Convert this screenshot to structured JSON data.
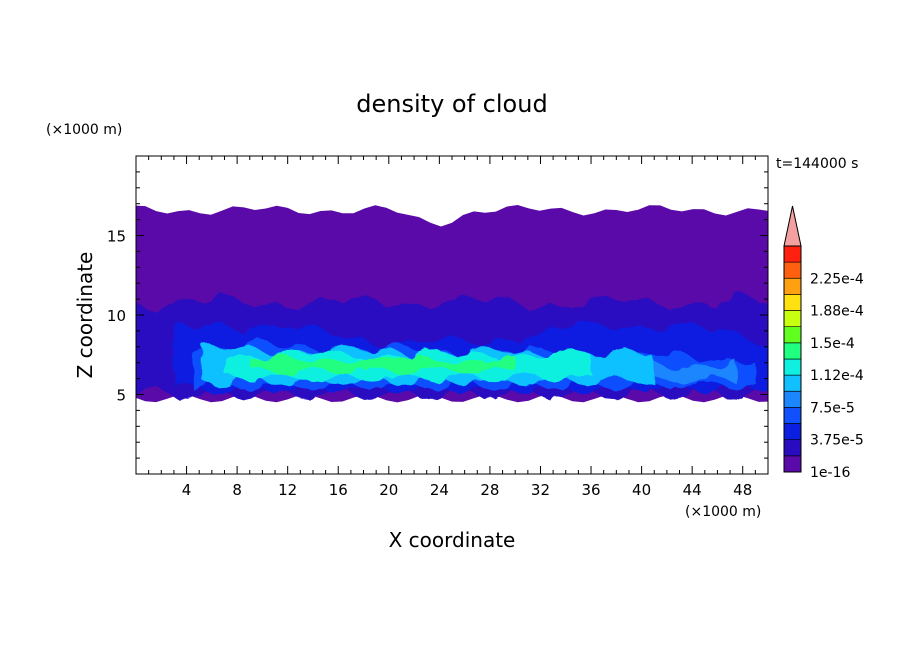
{
  "chart_data": {
    "type": "heatmap",
    "title": "density of cloud",
    "xlabel": "X coordinate",
    "ylabel": "Z coordinate",
    "x_unit": "(×1000 m)",
    "y_unit": "(×1000 m)",
    "time_label": "t=144000 s",
    "xlim": [
      0,
      50
    ],
    "ylim": [
      0,
      20
    ],
    "x_ticks": [
      4,
      8,
      12,
      16,
      20,
      24,
      28,
      32,
      36,
      40,
      44,
      48
    ],
    "y_ticks": [
      5,
      10,
      15
    ],
    "colorbar": {
      "labels": [
        "1e-16",
        "3.75e-5",
        "7.5e-5",
        "1.12e-4",
        "1.5e-4",
        "1.88e-4",
        "2.25e-4"
      ],
      "levels": [
        1e-16,
        1.88e-05,
        3.75e-05,
        5.63e-05,
        7.5e-05,
        9.38e-05,
        0.000112,
        0.000131,
        0.00015,
        0.000169,
        0.000188,
        0.000206,
        0.000225,
        0.000244
      ],
      "colors": [
        "#5a0aa8",
        "#2a0cc0",
        "#0c1ee0",
        "#1050ff",
        "#1c86ff",
        "#10c0ff",
        "#10f0e0",
        "#20ff80",
        "#60ff20",
        "#c8ff10",
        "#ffe010",
        "#ffa010",
        "#ff6010",
        "#ff2010"
      ],
      "over_color": "#f4a0a0"
    },
    "regions": [
      {
        "level_index": 0,
        "x": [
          0,
          50
        ],
        "y": [
          4.7,
          17
        ],
        "note_top": "dome near x=23 up to 16.5"
      },
      {
        "level_index": 1,
        "x": [
          0,
          50
        ],
        "y": [
          5.0,
          11.5
        ]
      },
      {
        "level_index": 3,
        "x": [
          4.5,
          49
        ],
        "y": [
          5.5,
          8.5
        ]
      },
      {
        "level_index": 5,
        "x": [
          5.5,
          41
        ],
        "y": [
          5.8,
          8.0
        ]
      },
      {
        "level_index": 7,
        "x": [
          8,
          34
        ],
        "y": [
          6.2,
          7.6
        ]
      }
    ]
  }
}
